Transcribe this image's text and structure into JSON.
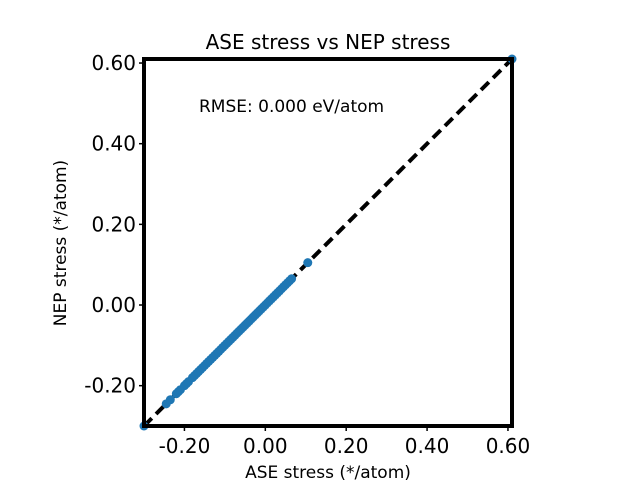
{
  "chart_data": {
    "type": "scatter",
    "title": "ASE stress vs NEP stress",
    "xlabel": "ASE stress (*/atom)",
    "ylabel": "NEP stress (*/atom)",
    "xlim": [
      -0.3,
      0.61
    ],
    "ylim": [
      -0.3,
      0.61
    ],
    "xticks": [
      -0.2,
      0.0,
      0.2,
      0.4,
      0.6
    ],
    "yticks": [
      -0.2,
      0.0,
      0.2,
      0.4,
      0.6
    ],
    "xtick_labels": [
      "-0.20",
      "0.00",
      "0.20",
      "0.40",
      "0.60"
    ],
    "ytick_labels": [
      "-0.20",
      "0.00",
      "0.20",
      "0.40",
      "0.60"
    ],
    "annotation": "RMSE: 0.000 eV/atom",
    "grid": false,
    "reference_line": {
      "style": "dashed",
      "color": "#000000",
      "from": [
        -0.3,
        -0.3
      ],
      "to": [
        0.61,
        0.61
      ]
    },
    "marker_color": "#1f77b4",
    "series": [
      {
        "x": [
          -0.3,
          -0.245,
          -0.235,
          -0.22,
          -0.215,
          -0.21,
          -0.2,
          -0.195,
          -0.19,
          -0.18,
          -0.175,
          -0.17,
          -0.165,
          -0.16,
          -0.155,
          -0.15,
          -0.145,
          -0.14,
          -0.135,
          -0.13,
          -0.125,
          -0.12,
          -0.115,
          -0.11,
          -0.105,
          -0.1,
          -0.095,
          -0.09,
          -0.085,
          -0.08,
          -0.075,
          -0.07,
          -0.065,
          -0.06,
          -0.055,
          -0.05,
          -0.045,
          -0.04,
          -0.035,
          -0.03,
          -0.025,
          -0.02,
          -0.015,
          -0.01,
          -0.005,
          0.0,
          0.005,
          0.01,
          0.015,
          0.02,
          0.025,
          0.03,
          0.035,
          0.04,
          0.045,
          0.05,
          0.055,
          0.06,
          0.065,
          0.105,
          0.61
        ],
        "y": [
          -0.3,
          -0.245,
          -0.235,
          -0.22,
          -0.215,
          -0.21,
          -0.2,
          -0.195,
          -0.19,
          -0.18,
          -0.175,
          -0.17,
          -0.165,
          -0.16,
          -0.155,
          -0.15,
          -0.145,
          -0.14,
          -0.135,
          -0.13,
          -0.125,
          -0.12,
          -0.115,
          -0.11,
          -0.105,
          -0.1,
          -0.095,
          -0.09,
          -0.085,
          -0.08,
          -0.075,
          -0.07,
          -0.065,
          -0.06,
          -0.055,
          -0.05,
          -0.045,
          -0.04,
          -0.035,
          -0.03,
          -0.025,
          -0.02,
          -0.015,
          -0.01,
          -0.005,
          0.0,
          0.005,
          0.01,
          0.015,
          0.02,
          0.025,
          0.03,
          0.035,
          0.04,
          0.045,
          0.05,
          0.055,
          0.06,
          0.065,
          0.105,
          0.61
        ]
      }
    ]
  }
}
